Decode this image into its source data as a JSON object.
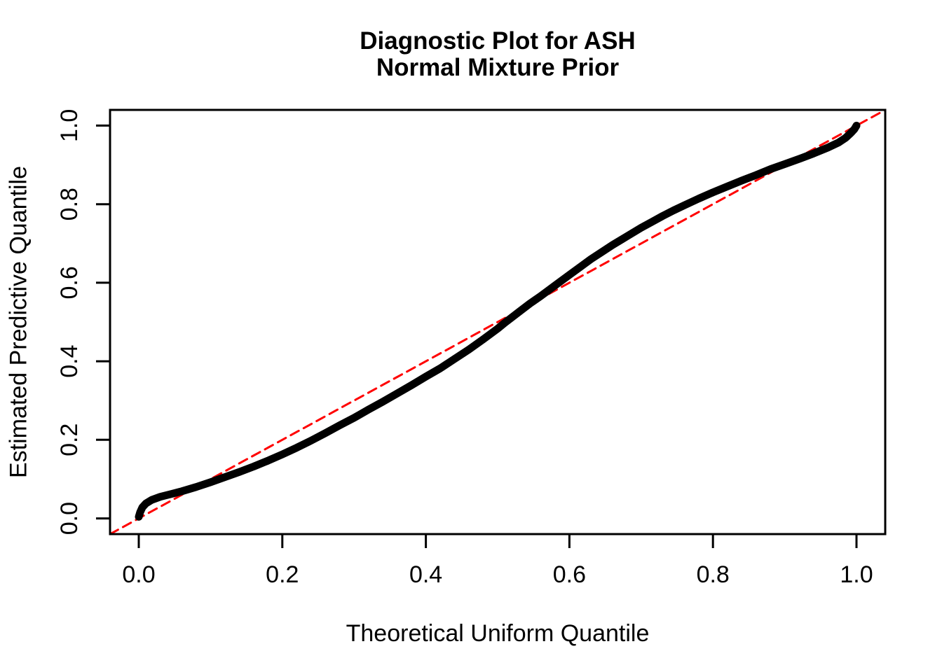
{
  "figure": {
    "background_color": "#FFFFFF",
    "foreground_color": "#000000"
  },
  "chart_data": {
    "type": "line",
    "title_lines": [
      "Diagnostic Plot for ASH",
      "Normal Mixture Prior"
    ],
    "xlabel": "Theoretical Uniform Quantile",
    "ylabel": "Estimated Predictive Quantile",
    "xlim": [
      -0.04,
      1.04
    ],
    "ylim": [
      -0.04,
      1.04
    ],
    "grid": false,
    "legend": null,
    "x_ticks": [
      {
        "value": 0.0,
        "label": "0.0"
      },
      {
        "value": 0.2,
        "label": "0.2"
      },
      {
        "value": 0.4,
        "label": "0.4"
      },
      {
        "value": 0.6,
        "label": "0.6"
      },
      {
        "value": 0.8,
        "label": "0.8"
      },
      {
        "value": 1.0,
        "label": "1.0"
      }
    ],
    "y_ticks": [
      {
        "value": 0.0,
        "label": "0.0"
      },
      {
        "value": 0.2,
        "label": "0.2"
      },
      {
        "value": 0.4,
        "label": "0.4"
      },
      {
        "value": 0.6,
        "label": "0.6"
      },
      {
        "value": 0.8,
        "label": "0.8"
      },
      {
        "value": 1.0,
        "label": "1.0"
      }
    ],
    "series": [
      {
        "name": "estimated-predictive-quantile-curve",
        "color": "#000000",
        "line_width": 11,
        "dash": null,
        "points": [
          [
            0.0,
            0.004
          ],
          [
            0.002,
            0.016
          ],
          [
            0.005,
            0.028
          ],
          [
            0.01,
            0.038
          ],
          [
            0.018,
            0.047
          ],
          [
            0.03,
            0.055
          ],
          [
            0.045,
            0.062
          ],
          [
            0.06,
            0.069
          ],
          [
            0.08,
            0.08
          ],
          [
            0.1,
            0.092
          ],
          [
            0.12,
            0.105
          ],
          [
            0.14,
            0.118
          ],
          [
            0.16,
            0.132
          ],
          [
            0.18,
            0.147
          ],
          [
            0.2,
            0.163
          ],
          [
            0.22,
            0.18
          ],
          [
            0.24,
            0.198
          ],
          [
            0.26,
            0.217
          ],
          [
            0.28,
            0.237
          ],
          [
            0.3,
            0.256
          ],
          [
            0.32,
            0.277
          ],
          [
            0.34,
            0.297
          ],
          [
            0.36,
            0.318
          ],
          [
            0.38,
            0.339
          ],
          [
            0.4,
            0.361
          ],
          [
            0.42,
            0.382
          ],
          [
            0.44,
            0.406
          ],
          [
            0.46,
            0.43
          ],
          [
            0.48,
            0.456
          ],
          [
            0.5,
            0.483
          ],
          [
            0.51,
            0.498
          ],
          [
            0.52,
            0.512
          ],
          [
            0.53,
            0.526
          ],
          [
            0.545,
            0.547
          ],
          [
            0.56,
            0.566
          ],
          [
            0.58,
            0.593
          ],
          [
            0.6,
            0.62
          ],
          [
            0.615,
            0.64
          ],
          [
            0.63,
            0.66
          ],
          [
            0.645,
            0.678
          ],
          [
            0.66,
            0.696
          ],
          [
            0.68,
            0.718
          ],
          [
            0.7,
            0.74
          ],
          [
            0.715,
            0.755
          ],
          [
            0.73,
            0.77
          ],
          [
            0.745,
            0.784
          ],
          [
            0.76,
            0.797
          ],
          [
            0.78,
            0.814
          ],
          [
            0.8,
            0.83
          ],
          [
            0.82,
            0.845
          ],
          [
            0.84,
            0.86
          ],
          [
            0.86,
            0.874
          ],
          [
            0.88,
            0.889
          ],
          [
            0.9,
            0.902
          ],
          [
            0.92,
            0.915
          ],
          [
            0.94,
            0.929
          ],
          [
            0.96,
            0.944
          ],
          [
            0.975,
            0.957
          ],
          [
            0.985,
            0.969
          ],
          [
            0.992,
            0.981
          ],
          [
            0.997,
            0.991
          ],
          [
            1.0,
            1.0
          ]
        ]
      },
      {
        "name": "identity-reference-line",
        "color": "#FF0000",
        "line_width": 3,
        "dash": [
          13,
          8
        ],
        "points": [
          [
            -0.04,
            -0.04
          ],
          [
            1.04,
            1.04
          ]
        ]
      }
    ]
  }
}
